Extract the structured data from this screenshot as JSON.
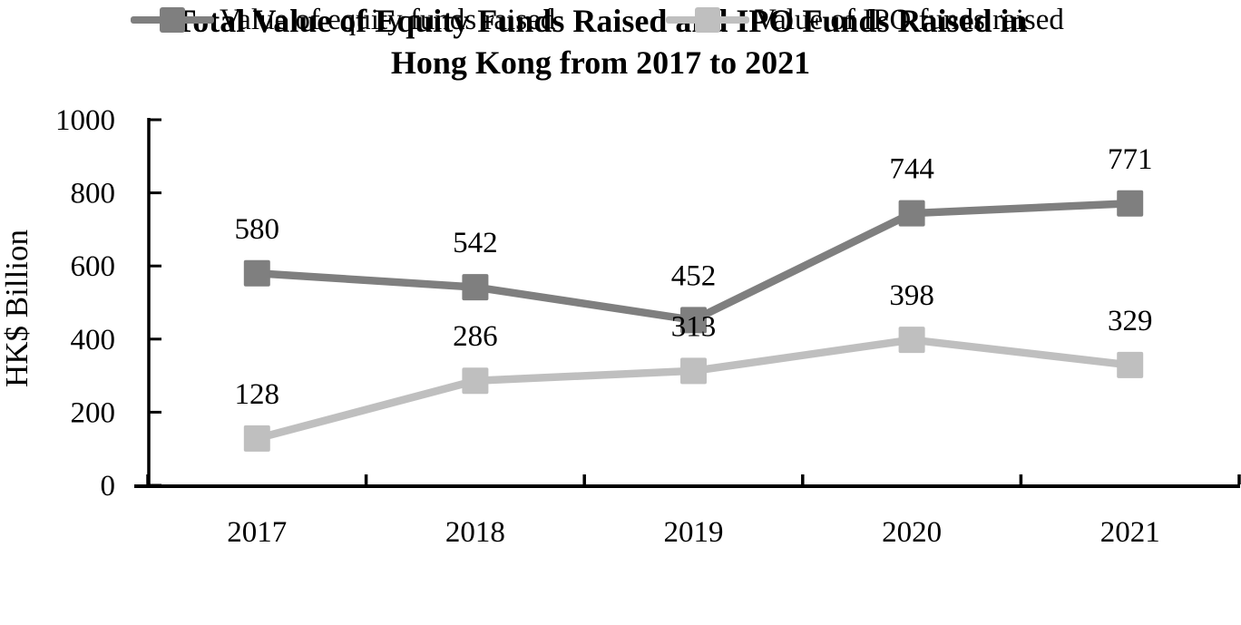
{
  "title": {
    "line1": "Total Value of Equity Funds Raised and IPO Funds Raised in",
    "line2": "Hong Kong from 2017 to 2021"
  },
  "chart_data": {
    "type": "line",
    "title": "Total Value of Equity Funds Raised and IPO Funds Raised in Hong Kong from 2017 to 2021",
    "categories": [
      "2017",
      "2018",
      "2019",
      "2020",
      "2021"
    ],
    "series": [
      {
        "name": "Value of equity funds raised",
        "values": [
          580,
          542,
          452,
          744,
          771
        ],
        "color": "#7F7F7F",
        "marker": "square"
      },
      {
        "name": "Value of IPO funds raised",
        "values": [
          128,
          286,
          313,
          398,
          329
        ],
        "color": "#BFBFBF",
        "marker": "square"
      }
    ],
    "xlabel": "",
    "ylabel": "HK$ Billion",
    "ylim": [
      0,
      1000
    ],
    "yticks": [
      0,
      200,
      400,
      600,
      800,
      1000
    ],
    "grid": false,
    "data_labels": true,
    "legend_position": "bottom",
    "axis_color": "#000000",
    "text_color": "#000000",
    "background_color": "#FFFFFF"
  }
}
